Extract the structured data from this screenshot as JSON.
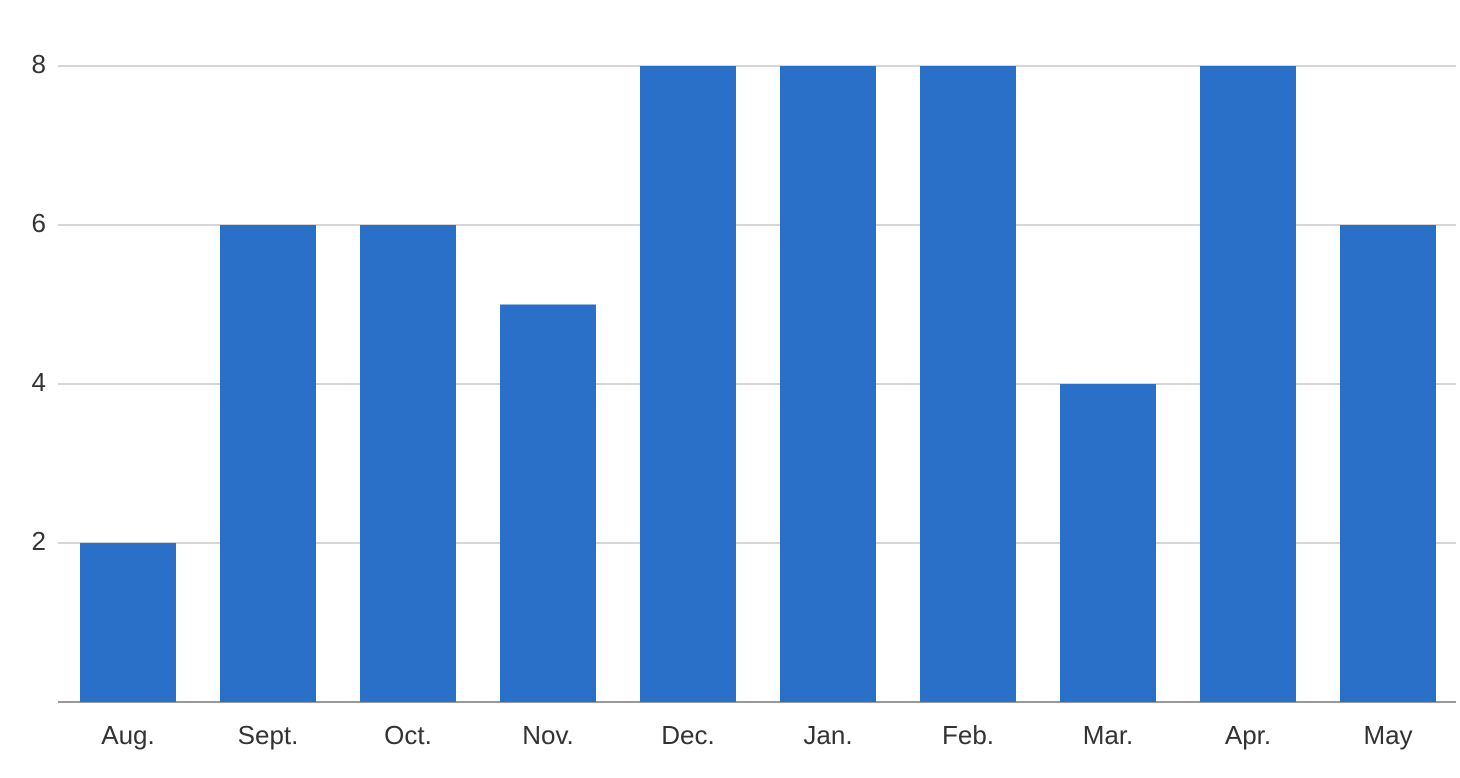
{
  "chart_data": {
    "type": "bar",
    "categories": [
      "Aug.",
      "Sept.",
      "Oct.",
      "Nov.",
      "Dec.",
      "Jan.",
      "Feb.",
      "Mar.",
      "Apr.",
      "May"
    ],
    "values": [
      2,
      6,
      6,
      5,
      8,
      8,
      8,
      4,
      8,
      6
    ],
    "color": "#2a70c8",
    "ylim": [
      0,
      8
    ],
    "yticks": [
      2,
      4,
      6,
      8
    ],
    "grid": true
  }
}
